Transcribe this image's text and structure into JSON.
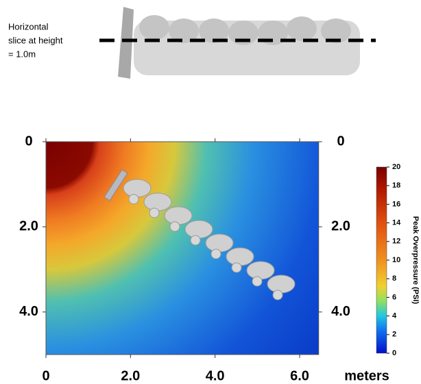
{
  "annotation": [
    "Horizontal",
    "slice at height",
    "= 1.0m"
  ],
  "chart_data": {
    "type": "heatmap",
    "xlabel": "meters",
    "xlim": [
      0,
      6.45
    ],
    "xticks": [
      0,
      {
        "value": 2.0,
        "label": "2.0"
      },
      {
        "value": 4.0,
        "label": "4.0"
      },
      {
        "value": 6.0,
        "label": "6.0"
      }
    ],
    "ylim": [
      0,
      5.0
    ],
    "yticks": [
      0,
      {
        "value": 2.0,
        "label": "2.0"
      },
      {
        "value": 4.0,
        "label": "4.0"
      }
    ],
    "colorbar": {
      "label": "Peak Overpressure (PSI)",
      "lim": [
        0,
        20
      ],
      "ticks": [
        0,
        2,
        4,
        6,
        8,
        10,
        12,
        14,
        16,
        18,
        20
      ]
    }
  }
}
